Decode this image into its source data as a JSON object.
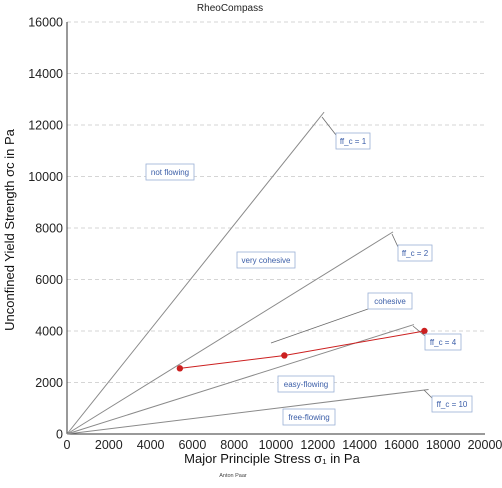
{
  "app_title": "RheoCompass",
  "footer_text": "Anton Paar",
  "chart_data": {
    "type": "line",
    "xlabel": "Major Principle Stress σ₁ in Pa",
    "ylabel": "Unconfined Yield Strength σc in Pa",
    "xlim": [
      0,
      20000
    ],
    "ylim": [
      0,
      16000
    ],
    "x_ticks": [
      "0",
      "2000",
      "4000",
      "6000",
      "8000",
      "10000",
      "12000",
      "14000",
      "16000",
      "18000",
      "20000"
    ],
    "y_ticks": [
      "0",
      "2000",
      "4000",
      "6000",
      "8000",
      "10000",
      "12000",
      "14000",
      "16000"
    ],
    "grid": "horizontal dashed",
    "ff_lines": [
      {
        "name": "ff_c = 1",
        "x": [
          0,
          12300
        ],
        "y": [
          0,
          12500
        ]
      },
      {
        "name": "ff_c = 2",
        "x": [
          0,
          15600
        ],
        "y": [
          0,
          7850
        ]
      },
      {
        "name": "ff_c = 4",
        "x": [
          0,
          16600
        ],
        "y": [
          0,
          4250
        ]
      },
      {
        "name": "ff_c = 10",
        "x": [
          0,
          17300
        ],
        "y": [
          0,
          1730
        ]
      }
    ],
    "regions": [
      "not flowing",
      "very cohesive",
      "cohesive",
      "easy-flowing",
      "free-flowing"
    ],
    "series": [
      {
        "color": "#cc2020",
        "x": [
          5400,
          10400,
          17100
        ],
        "y": [
          2550,
          3050,
          4000
        ]
      }
    ],
    "colors": {
      "ff_line": "#8a8a8a",
      "label_border": "#9ab0d6",
      "label_text": "#3b5ea8",
      "series": "#cc2020",
      "grid": "#c8c8c8"
    }
  }
}
